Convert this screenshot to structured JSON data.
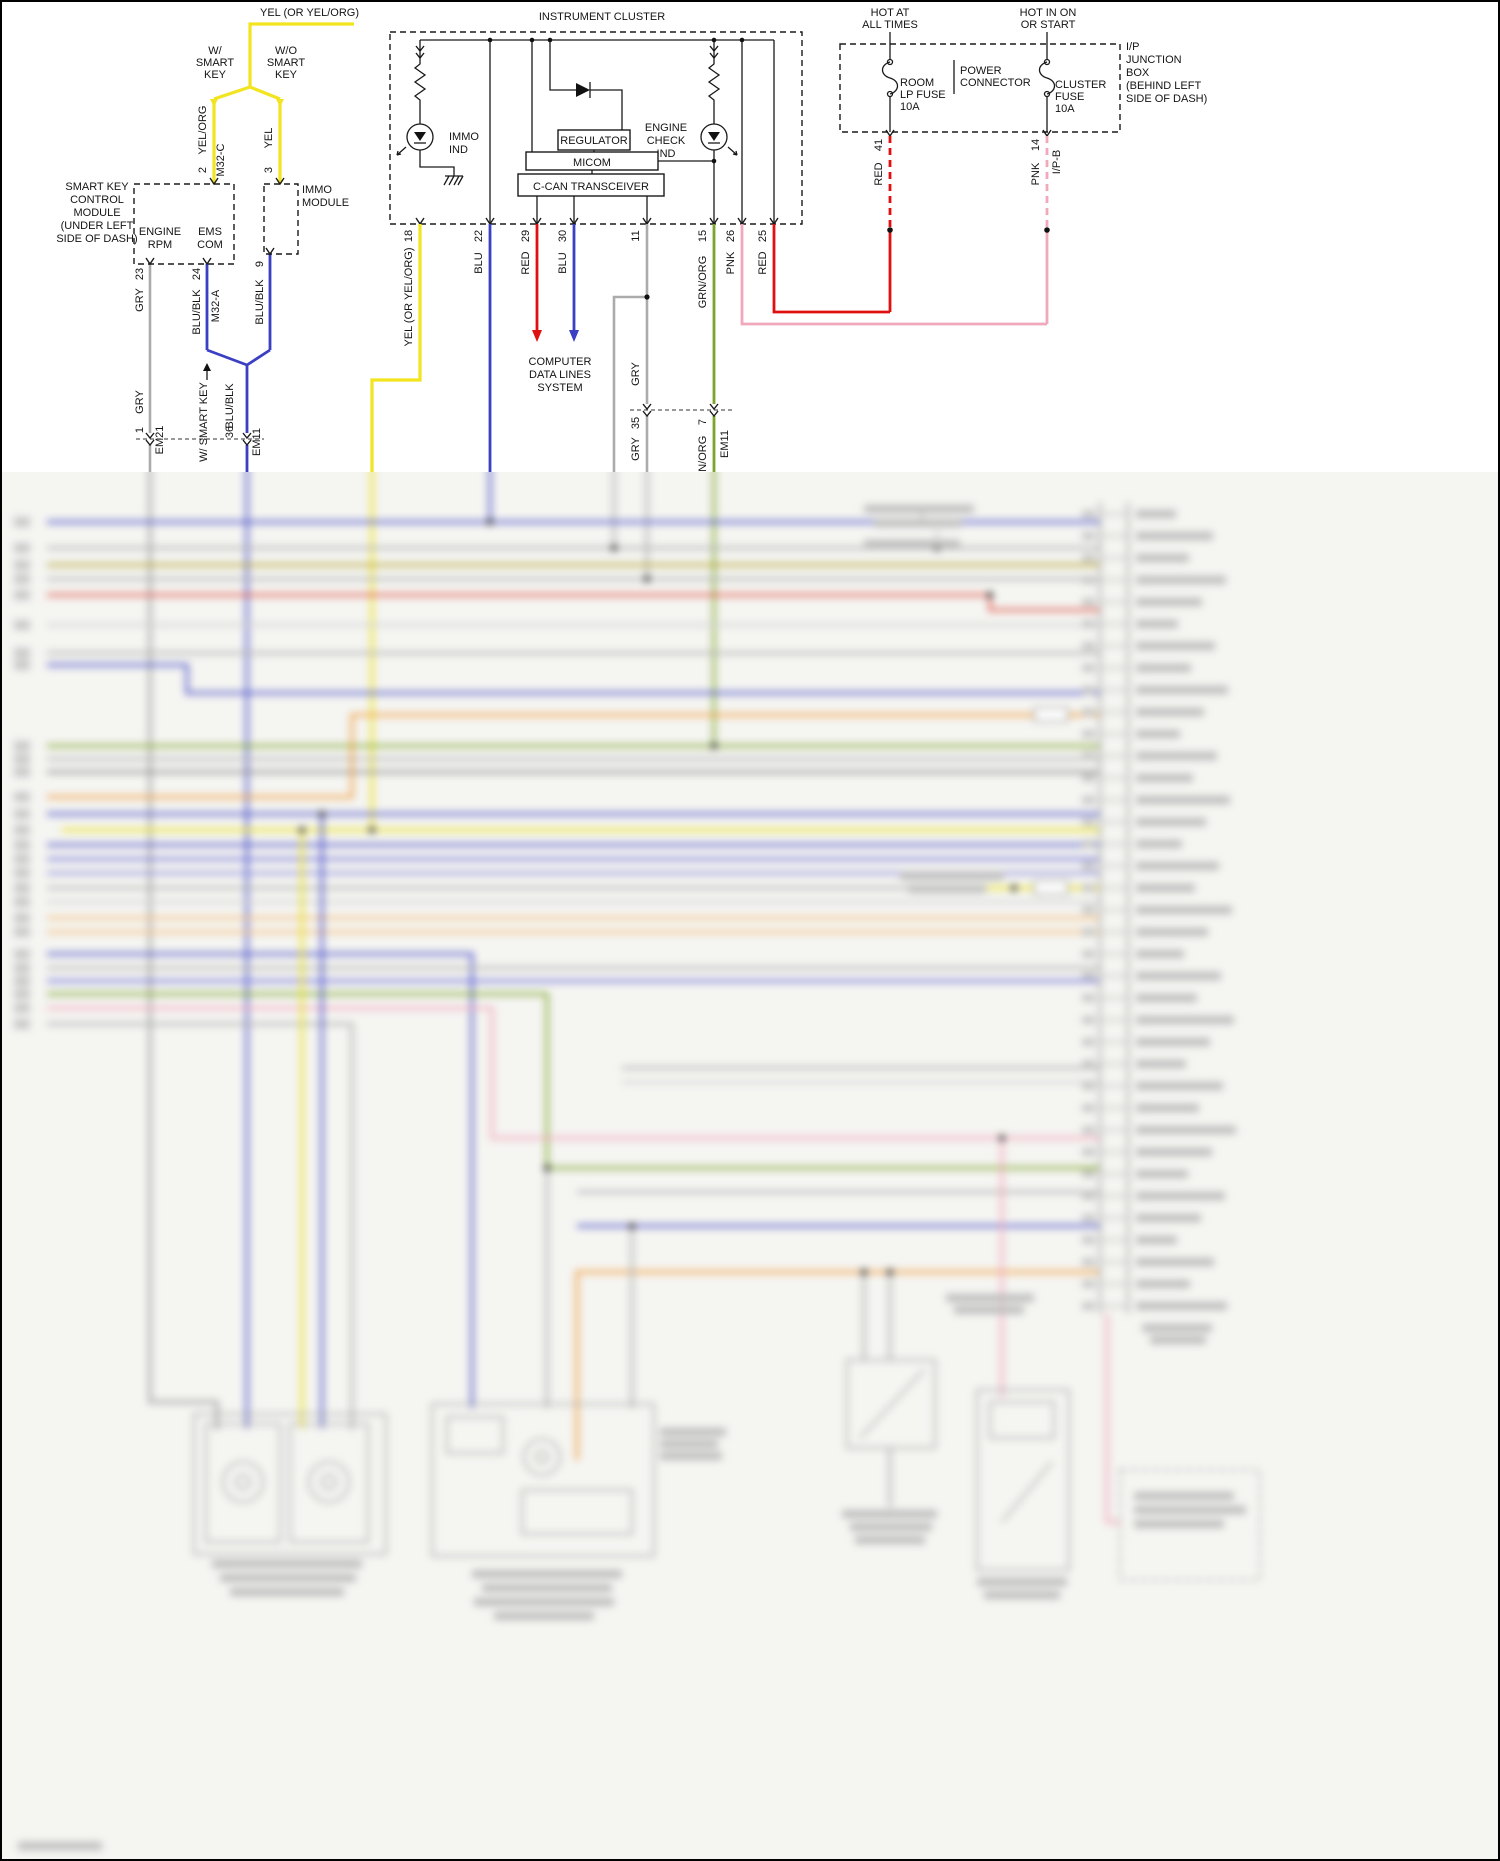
{
  "colors": {
    "yellow_wire": "#f2e41f",
    "blue_wire": "#3a3fc4",
    "red_wire": "#e01010",
    "pink_wire": "#f2a8bc",
    "gray_wire": "#ababab",
    "green_wire": "#7ca428",
    "orange_wire": "#f09c3c"
  },
  "smart_key": {
    "top_wire": "YEL (OR YEL/ORG)",
    "with_key": [
      "W/",
      "SMART",
      "KEY"
    ],
    "without_key": [
      "W/O",
      "SMART",
      "KEY"
    ],
    "wire2_color": "YEL/ORG",
    "pin2": "2",
    "conn2": "M32-C",
    "wire3_color": "YEL",
    "pin3": "3",
    "module_note": [
      "SMART KEY",
      "CONTROL",
      "MODULE",
      "(UNDER LEFT",
      "SIDE OF DASH)"
    ],
    "engine_rpm": [
      "ENGINE",
      "RPM"
    ],
    "ems_com": [
      "EMS",
      "COM"
    ],
    "immo_module": [
      "IMMO",
      "MODULE"
    ],
    "pin23": "23",
    "wire23_color": "GRY",
    "pin24": "24",
    "wire24_color": "BLU/BLK",
    "conn24": "M32-A",
    "pin9": "9",
    "wire9_color": "BLU/BLK",
    "gry_lower": "GRY",
    "pin1": "1",
    "conn_em21": "EM21",
    "with_key_note": "W/ SMART KEY",
    "blublk_lower": "BLU/BLK",
    "pin36": "36",
    "conn_em11": "EM11"
  },
  "cluster": {
    "title": "INSTRUMENT CLUSTER",
    "immo_ind": [
      "IMMO",
      "IND"
    ],
    "regulator": "REGULATOR",
    "micom": "MICOM",
    "ccan_transceiver": "C-CAN TRANSCEIVER",
    "engine_check_ind": [
      "ENGINE",
      "CHECK",
      "IND"
    ],
    "pin18": "18",
    "wire18_color": "YEL (OR YEL/ORG)",
    "pin22": "22",
    "wire22_color": "BLU",
    "pin29": "29",
    "wire29_color": "RED",
    "pin30": "30",
    "wire30_color": "BLU",
    "pin11": "11",
    "wire11_color": "GRY",
    "pin35": "35",
    "gry_low": "GRY",
    "pin15": "15",
    "wire15_color": "GRN/ORG",
    "pin7": "7",
    "conn_em11": "EM11",
    "grnorg_low": "GRN/ORG",
    "pin26": "26",
    "wire26_color": "PNK",
    "pin25": "25",
    "wire25_color": "RED",
    "computer_data_lines": [
      "COMPUTER",
      "DATA LINES",
      "SYSTEM"
    ]
  },
  "junction_box": {
    "hot_at_all_times": [
      "HOT AT",
      "ALL TIMES"
    ],
    "hot_in_on_or_start": [
      "HOT IN ON",
      "OR START"
    ],
    "room_lp_fuse": [
      "ROOM",
      "LP FUSE",
      "10A"
    ],
    "power_connector": [
      "POWER",
      "CONNECTOR"
    ],
    "cluster_fuse": [
      "CLUSTER",
      "FUSE",
      "10A"
    ],
    "location_note": [
      "I/P",
      "JUNCTION",
      "BOX",
      "(BEHIND LEFT",
      "SIDE OF DASH)"
    ],
    "pin41": "41",
    "wire41_color": "RED",
    "pin14": "14",
    "wire14_color": "PNK",
    "conn_ipb": "I/P-B"
  }
}
